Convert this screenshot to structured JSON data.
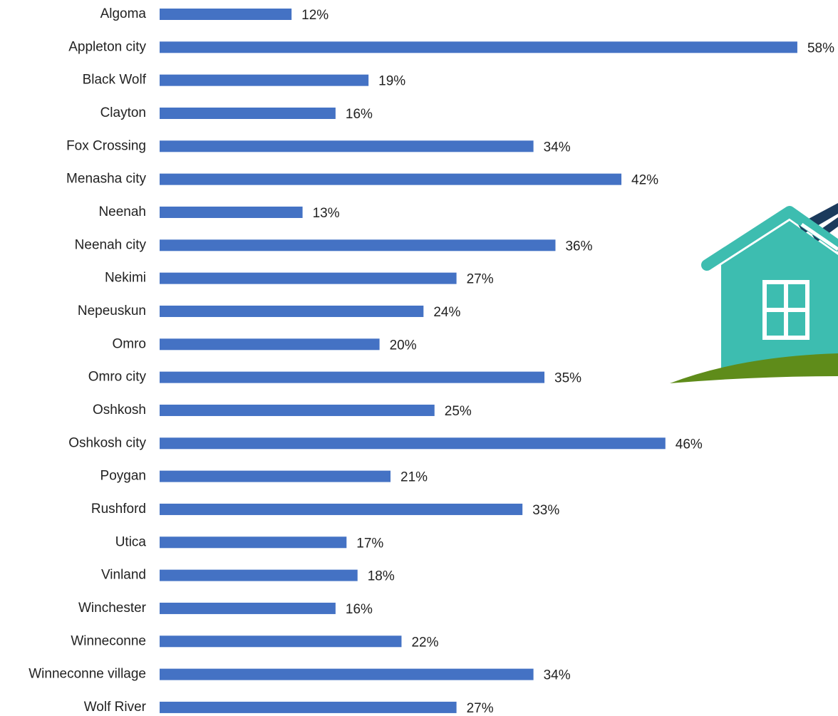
{
  "chart_data": {
    "type": "bar",
    "orientation": "horizontal",
    "categories": [
      "Algoma",
      "Appleton city",
      "Black Wolf",
      "Clayton",
      "Fox Crossing",
      "Menasha city",
      "Neenah",
      "Neenah city",
      "Nekimi",
      "Nepeuskun",
      "Omro",
      "Omro city",
      "Oshkosh",
      "Oshkosh city",
      "Poygan",
      "Rushford",
      "Utica",
      "Vinland",
      "Winchester",
      "Winneconne",
      "Winneconne village",
      "Wolf River"
    ],
    "values": [
      12,
      58,
      19,
      16,
      34,
      42,
      13,
      36,
      27,
      24,
      20,
      35,
      25,
      46,
      21,
      33,
      17,
      18,
      16,
      22,
      34,
      27
    ],
    "value_labels": [
      "12%",
      "58%",
      "19%",
      "16%",
      "34%",
      "42%",
      "13%",
      "36%",
      "27%",
      "24%",
      "20%",
      "35%",
      "25%",
      "46%",
      "21%",
      "33%",
      "17%",
      "18%",
      "16%",
      "22%",
      "34%",
      "27%"
    ],
    "color": "#4472c4"
  }
}
